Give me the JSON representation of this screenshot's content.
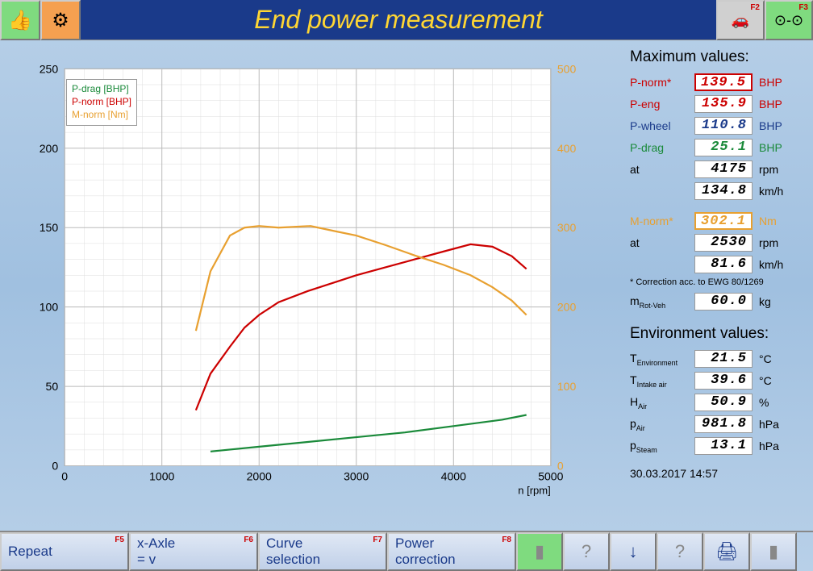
{
  "header": {
    "title": "End power measurement",
    "f2_label": "F2",
    "f3_label": "F3"
  },
  "chart": {
    "type": "line",
    "x_label": "n [rpm]",
    "xlim": [
      0,
      5000
    ],
    "xtick_step": 1000,
    "left_ylim": [
      0,
      250
    ],
    "left_ytick_step": 50,
    "right_ylim": [
      0,
      500
    ],
    "right_ytick_step": 100,
    "background_color": "#ffffff",
    "grid_major_color": "#bbbbbb",
    "grid_minor_color": "#dddddd",
    "legend": [
      {
        "label": "P-drag [BHP]",
        "color": "#1a8a3a"
      },
      {
        "label": "P-norm [BHP]",
        "color": "#cc0000"
      },
      {
        "label": "M-norm [Nm]",
        "color": "#e8a030"
      }
    ],
    "series": {
      "p_drag": {
        "color": "#1a8a3a",
        "axis": "left",
        "x": [
          1500,
          2000,
          2500,
          3000,
          3500,
          4000,
          4500,
          4750
        ],
        "y": [
          9,
          12,
          15,
          18,
          21,
          25,
          29,
          32
        ]
      },
      "p_norm": {
        "color": "#cc0000",
        "axis": "left",
        "x": [
          1350,
          1500,
          1700,
          1850,
          2000,
          2200,
          2500,
          2800,
          3000,
          3300,
          3600,
          3900,
          4175,
          4400,
          4600,
          4750
        ],
        "y": [
          35,
          58,
          75,
          87,
          95,
          103,
          110,
          116,
          120,
          125,
          130,
          135,
          139.5,
          138,
          132,
          124
        ]
      },
      "m_norm": {
        "color": "#e8a030",
        "axis": "right",
        "x": [
          1350,
          1500,
          1700,
          1850,
          2000,
          2200,
          2530,
          2800,
          3000,
          3300,
          3600,
          3900,
          4175,
          4400,
          4600,
          4750
        ],
        "y": [
          170,
          245,
          290,
          300,
          302,
          300,
          302,
          295,
          290,
          278,
          265,
          253,
          240,
          225,
          208,
          190
        ]
      }
    }
  },
  "max_values": {
    "heading": "Maximum values:",
    "rows": [
      {
        "label": "P-norm*",
        "value": "139.5",
        "unit": "BHP",
        "color": "c-red",
        "highlight": "highlight-red"
      },
      {
        "label": "P-eng",
        "value": "135.9",
        "unit": "BHP",
        "color": "c-red"
      },
      {
        "label": "P-wheel",
        "value": "110.8",
        "unit": "BHP",
        "color": "c-blue"
      },
      {
        "label": "P-drag",
        "value": "25.1",
        "unit": "BHP",
        "color": "c-green"
      },
      {
        "label": "at",
        "value": "4175",
        "unit": "rpm",
        "color": "c-black"
      },
      {
        "label": "",
        "value": "134.8",
        "unit": "km/h",
        "color": "c-black"
      }
    ],
    "rows2": [
      {
        "label": "M-norm*",
        "value": "302.1",
        "unit": "Nm",
        "color": "c-orange",
        "highlight": "highlight-orange"
      },
      {
        "label": "at",
        "value": "2530",
        "unit": "rpm",
        "color": "c-black"
      },
      {
        "label": "",
        "value": "81.6",
        "unit": "km/h",
        "color": "c-black"
      }
    ],
    "footnote": "* Correction acc. to EWG 80/1269",
    "m_rot_label": "m",
    "m_rot_sub": "Rot-Veh",
    "m_rot_value": "60.0",
    "m_rot_unit": "kg"
  },
  "env_values": {
    "heading": "Environment values:",
    "rows": [
      {
        "label": "T",
        "sub": "Environment",
        "value": "21.5",
        "unit": "°C"
      },
      {
        "label": "T",
        "sub": "Intake air",
        "value": "39.6",
        "unit": "°C"
      },
      {
        "label": "H",
        "sub": "Air",
        "value": "50.9",
        "unit": "%"
      },
      {
        "label": "p",
        "sub": "Air",
        "value": "981.8",
        "unit": "hPa"
      },
      {
        "label": "p",
        "sub": "Steam",
        "value": "13.1",
        "unit": "hPa"
      }
    ]
  },
  "timestamp": "30.03.2017  14:57",
  "footer": {
    "buttons": [
      {
        "label": "Repeat",
        "fkey": "F5"
      },
      {
        "label": "x-Axle = v",
        "fkey": "F6"
      },
      {
        "label": "Curve selection",
        "fkey": "F7"
      },
      {
        "label": "Power correction",
        "fkey": "F8"
      }
    ]
  }
}
